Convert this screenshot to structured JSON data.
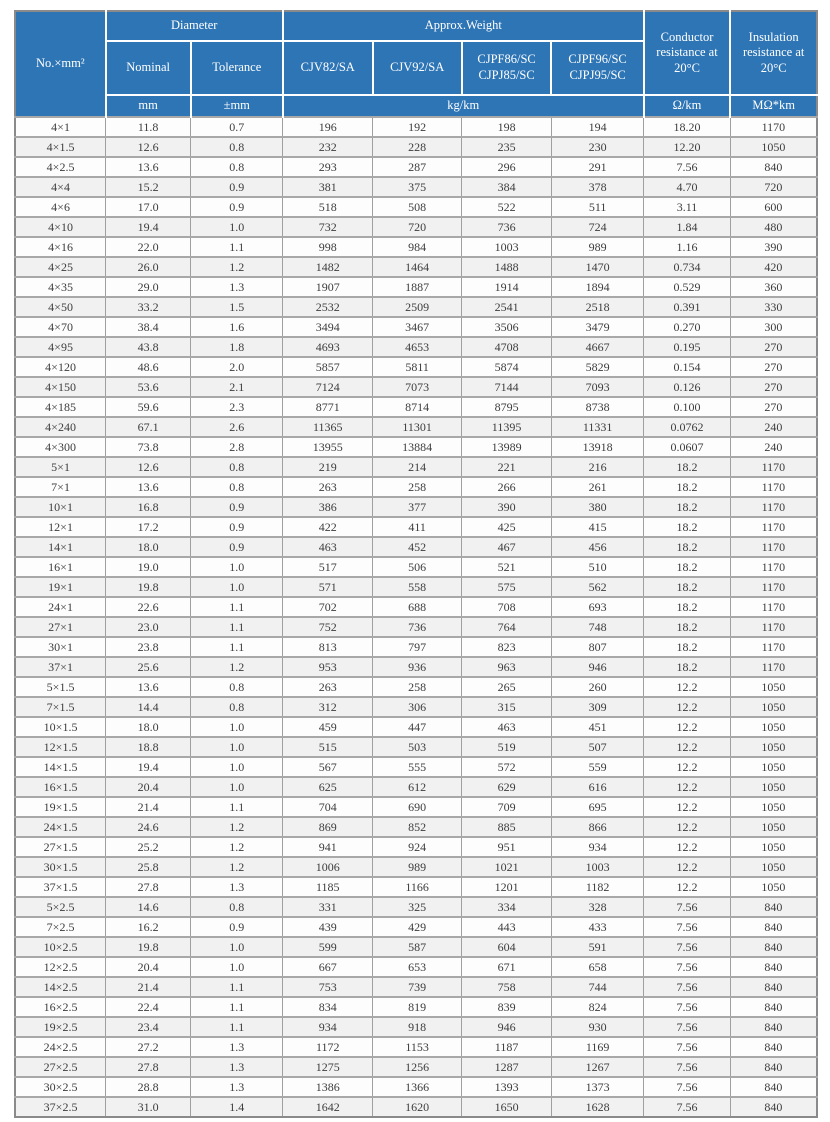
{
  "colors": {
    "header_bg": "#2e75b6",
    "header_text": "#ffffff",
    "row_alt_bg": "#f1f1f1",
    "grid_line": "#9f9f9f",
    "body_text": "#3d3d3d"
  },
  "table": {
    "header": {
      "size": "No.×mm²",
      "diameter_group": "Diameter",
      "weight_group": "Approx.Weight",
      "nominal": "Nominal",
      "tolerance": "Tolerance",
      "cjv82": "CJV82/SA",
      "cjv92": "CJV92/SA",
      "cjpf86": "CJPF86/SC\nCJPJ85/SC",
      "cjpf96": "CJPF96/SC\nCJPJ95/SC",
      "conductor_resistance": "Conductor resistance at 20°C",
      "insulation_resistance": "Insulation resistance at 20°C"
    },
    "units": {
      "diameter_nominal": "mm",
      "diameter_tolerance": "±mm",
      "weight": "kg/km",
      "conductor": "Ω/km",
      "insulation": "MΩ*km"
    },
    "columns": [
      "cell-size",
      "cell-nominal-diameter",
      "cell-tolerance",
      "cell-weight-cjv82",
      "cell-weight-cjv92",
      "cell-weight-cjpf86",
      "cell-weight-cjpf96",
      "cell-conductor-resistance",
      "cell-insulation-resistance"
    ],
    "rows": [
      [
        "4×1",
        "11.8",
        "0.7",
        "196",
        "192",
        "198",
        "194",
        "18.20",
        "1170"
      ],
      [
        "4×1.5",
        "12.6",
        "0.8",
        "232",
        "228",
        "235",
        "230",
        "12.20",
        "1050"
      ],
      [
        "4×2.5",
        "13.6",
        "0.8",
        "293",
        "287",
        "296",
        "291",
        "7.56",
        "840"
      ],
      [
        "4×4",
        "15.2",
        "0.9",
        "381",
        "375",
        "384",
        "378",
        "4.70",
        "720"
      ],
      [
        "4×6",
        "17.0",
        "0.9",
        "518",
        "508",
        "522",
        "511",
        "3.11",
        "600"
      ],
      [
        "4×10",
        "19.4",
        "1.0",
        "732",
        "720",
        "736",
        "724",
        "1.84",
        "480"
      ],
      [
        "4×16",
        "22.0",
        "1.1",
        "998",
        "984",
        "1003",
        "989",
        "1.16",
        "390"
      ],
      [
        "4×25",
        "26.0",
        "1.2",
        "1482",
        "1464",
        "1488",
        "1470",
        "0.734",
        "420"
      ],
      [
        "4×35",
        "29.0",
        "1.3",
        "1907",
        "1887",
        "1914",
        "1894",
        "0.529",
        "360"
      ],
      [
        "4×50",
        "33.2",
        "1.5",
        "2532",
        "2509",
        "2541",
        "2518",
        "0.391",
        "330"
      ],
      [
        "4×70",
        "38.4",
        "1.6",
        "3494",
        "3467",
        "3506",
        "3479",
        "0.270",
        "300"
      ],
      [
        "4×95",
        "43.8",
        "1.8",
        "4693",
        "4653",
        "4708",
        "4667",
        "0.195",
        "270"
      ],
      [
        "4×120",
        "48.6",
        "2.0",
        "5857",
        "5811",
        "5874",
        "5829",
        "0.154",
        "270"
      ],
      [
        "4×150",
        "53.6",
        "2.1",
        "7124",
        "7073",
        "7144",
        "7093",
        "0.126",
        "270"
      ],
      [
        "4×185",
        "59.6",
        "2.3",
        "8771",
        "8714",
        "8795",
        "8738",
        "0.100",
        "270"
      ],
      [
        "4×240",
        "67.1",
        "2.6",
        "11365",
        "11301",
        "11395",
        "11331",
        "0.0762",
        "240"
      ],
      [
        "4×300",
        "73.8",
        "2.8",
        "13955",
        "13884",
        "13989",
        "13918",
        "0.0607",
        "240"
      ],
      [
        "5×1",
        "12.6",
        "0.8",
        "219",
        "214",
        "221",
        "216",
        "18.2",
        "1170"
      ],
      [
        "7×1",
        "13.6",
        "0.8",
        "263",
        "258",
        "266",
        "261",
        "18.2",
        "1170"
      ],
      [
        "10×1",
        "16.8",
        "0.9",
        "386",
        "377",
        "390",
        "380",
        "18.2",
        "1170"
      ],
      [
        "12×1",
        "17.2",
        "0.9",
        "422",
        "411",
        "425",
        "415",
        "18.2",
        "1170"
      ],
      [
        "14×1",
        "18.0",
        "0.9",
        "463",
        "452",
        "467",
        "456",
        "18.2",
        "1170"
      ],
      [
        "16×1",
        "19.0",
        "1.0",
        "517",
        "506",
        "521",
        "510",
        "18.2",
        "1170"
      ],
      [
        "19×1",
        "19.8",
        "1.0",
        "571",
        "558",
        "575",
        "562",
        "18.2",
        "1170"
      ],
      [
        "24×1",
        "22.6",
        "1.1",
        "702",
        "688",
        "708",
        "693",
        "18.2",
        "1170"
      ],
      [
        "27×1",
        "23.0",
        "1.1",
        "752",
        "736",
        "764",
        "748",
        "18.2",
        "1170"
      ],
      [
        "30×1",
        "23.8",
        "1.1",
        "813",
        "797",
        "823",
        "807",
        "18.2",
        "1170"
      ],
      [
        "37×1",
        "25.6",
        "1.2",
        "953",
        "936",
        "963",
        "946",
        "18.2",
        "1170"
      ],
      [
        "5×1.5",
        "13.6",
        "0.8",
        "263",
        "258",
        "265",
        "260",
        "12.2",
        "1050"
      ],
      [
        "7×1.5",
        "14.4",
        "0.8",
        "312",
        "306",
        "315",
        "309",
        "12.2",
        "1050"
      ],
      [
        "10×1.5",
        "18.0",
        "1.0",
        "459",
        "447",
        "463",
        "451",
        "12.2",
        "1050"
      ],
      [
        "12×1.5",
        "18.8",
        "1.0",
        "515",
        "503",
        "519",
        "507",
        "12.2",
        "1050"
      ],
      [
        "14×1.5",
        "19.4",
        "1.0",
        "567",
        "555",
        "572",
        "559",
        "12.2",
        "1050"
      ],
      [
        "16×1.5",
        "20.4",
        "1.0",
        "625",
        "612",
        "629",
        "616",
        "12.2",
        "1050"
      ],
      [
        "19×1.5",
        "21.4",
        "1.1",
        "704",
        "690",
        "709",
        "695",
        "12.2",
        "1050"
      ],
      [
        "24×1.5",
        "24.6",
        "1.2",
        "869",
        "852",
        "885",
        "866",
        "12.2",
        "1050"
      ],
      [
        "27×1.5",
        "25.2",
        "1.2",
        "941",
        "924",
        "951",
        "934",
        "12.2",
        "1050"
      ],
      [
        "30×1.5",
        "25.8",
        "1.2",
        "1006",
        "989",
        "1021",
        "1003",
        "12.2",
        "1050"
      ],
      [
        "37×1.5",
        "27.8",
        "1.3",
        "1185",
        "1166",
        "1201",
        "1182",
        "12.2",
        "1050"
      ],
      [
        "5×2.5",
        "14.6",
        "0.8",
        "331",
        "325",
        "334",
        "328",
        "7.56",
        "840"
      ],
      [
        "7×2.5",
        "16.2",
        "0.9",
        "439",
        "429",
        "443",
        "433",
        "7.56",
        "840"
      ],
      [
        "10×2.5",
        "19.8",
        "1.0",
        "599",
        "587",
        "604",
        "591",
        "7.56",
        "840"
      ],
      [
        "12×2.5",
        "20.4",
        "1.0",
        "667",
        "653",
        "671",
        "658",
        "7.56",
        "840"
      ],
      [
        "14×2.5",
        "21.4",
        "1.1",
        "753",
        "739",
        "758",
        "744",
        "7.56",
        "840"
      ],
      [
        "16×2.5",
        "22.4",
        "1.1",
        "834",
        "819",
        "839",
        "824",
        "7.56",
        "840"
      ],
      [
        "19×2.5",
        "23.4",
        "1.1",
        "934",
        "918",
        "946",
        "930",
        "7.56",
        "840"
      ],
      [
        "24×2.5",
        "27.2",
        "1.3",
        "1172",
        "1153",
        "1187",
        "1169",
        "7.56",
        "840"
      ],
      [
        "27×2.5",
        "27.8",
        "1.3",
        "1275",
        "1256",
        "1287",
        "1267",
        "7.56",
        "840"
      ],
      [
        "30×2.5",
        "28.8",
        "1.3",
        "1386",
        "1366",
        "1393",
        "1373",
        "7.56",
        "840"
      ],
      [
        "37×2.5",
        "31.0",
        "1.4",
        "1642",
        "1620",
        "1650",
        "1628",
        "7.56",
        "840"
      ]
    ]
  }
}
